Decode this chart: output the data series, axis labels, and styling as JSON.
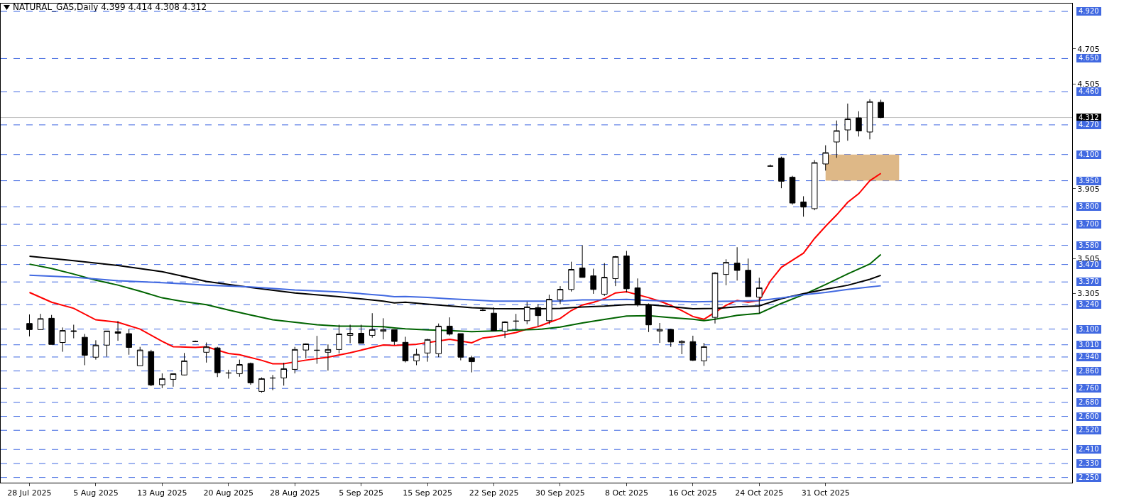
{
  "chart_data": {
    "type": "candlestick",
    "title": "NATURAL_GAS,Daily  4.399 4.414 4.308 4.312",
    "categories": [
      "28 Jul 2025",
      null,
      null,
      null,
      null,
      null,
      "5 Aug 2025",
      null,
      null,
      null,
      null,
      null,
      "13 Aug 2025",
      null,
      null,
      null,
      null,
      null,
      "20 Aug 2025",
      null,
      null,
      null,
      null,
      null,
      "28 Aug 2025",
      null,
      null,
      null,
      null,
      null,
      "5 Sep 2025",
      null,
      null,
      null,
      null,
      null,
      "15 Sep 2025",
      null,
      null,
      null,
      null,
      null,
      "22 Sep 2025",
      null,
      null,
      null,
      null,
      null,
      "30 Sep 2025",
      null,
      null,
      null,
      null,
      null,
      "8 Oct 2025",
      null,
      null,
      null,
      null,
      null,
      "16 Oct 2025",
      null,
      null,
      null,
      null,
      null,
      "24 Oct 2025",
      null,
      null,
      null,
      null,
      null,
      "31 Oct 2025",
      null,
      null,
      null,
      null,
      null
    ],
    "ohlc": [
      [
        3.132,
        3.184,
        3.058,
        3.097
      ],
      [
        3.097,
        3.187,
        3.096,
        3.16
      ],
      [
        3.162,
        3.181,
        3.012,
        3.012
      ],
      [
        3.023,
        3.109,
        2.97,
        3.092
      ],
      [
        3.09,
        3.125,
        3.047,
        3.087
      ],
      [
        3.053,
        3.072,
        2.893,
        2.95
      ],
      [
        2.939,
        3.036,
        2.925,
        3.008
      ],
      [
        3.008,
        3.089,
        2.942,
        3.089
      ],
      [
        3.085,
        3.146,
        3.033,
        3.076
      ],
      [
        3.074,
        3.099,
        2.953,
        2.995
      ],
      [
        2.89,
        2.998,
        2.89,
        2.98
      ],
      [
        2.971,
        2.981,
        2.773,
        2.78
      ],
      [
        2.781,
        2.846,
        2.762,
        2.816
      ],
      [
        2.812,
        2.844,
        2.77,
        2.844
      ],
      [
        2.837,
        2.963,
        2.834,
        2.918
      ],
      [
        3.028,
        3.034,
        3.026,
        3.029
      ],
      [
        2.967,
        3.023,
        2.908,
        2.998
      ],
      [
        2.992,
        2.998,
        2.825,
        2.85
      ],
      [
        2.849,
        2.867,
        2.816,
        2.848
      ],
      [
        2.844,
        2.925,
        2.827,
        2.897
      ],
      [
        2.903,
        2.908,
        2.781,
        2.792
      ],
      [
        2.743,
        2.823,
        2.736,
        2.816
      ],
      [
        2.819,
        2.837,
        2.75,
        2.82
      ],
      [
        2.82,
        2.907,
        2.776,
        2.873
      ],
      [
        2.869,
        2.998,
        2.846,
        2.983
      ],
      [
        2.98,
        3.018,
        2.932,
        3.015
      ],
      [
        2.978,
        3.061,
        2.901,
        2.979
      ],
      [
        2.967,
        3.012,
        2.862,
        2.983
      ],
      [
        2.983,
        3.125,
        2.96,
        3.072
      ],
      [
        3.064,
        3.125,
        3.019,
        3.076
      ],
      [
        3.076,
        3.125,
        3.019,
        3.019
      ],
      [
        3.064,
        3.191,
        3.051,
        3.097
      ],
      [
        3.087,
        3.162,
        3.041,
        3.097
      ],
      [
        3.097,
        3.097,
        3.009,
        3.029
      ],
      [
        3.024,
        3.056,
        2.909,
        2.918
      ],
      [
        2.918,
        2.987,
        2.893,
        2.955
      ],
      [
        2.963,
        3.044,
        2.913,
        3.04
      ],
      [
        2.959,
        3.132,
        2.939,
        3.117
      ],
      [
        3.117,
        3.167,
        3.063,
        3.071
      ],
      [
        3.074,
        3.074,
        2.921,
        2.939
      ],
      [
        2.936,
        2.947,
        2.852,
        2.913
      ],
      [
        3.208,
        3.218,
        3.203,
        3.207
      ],
      [
        3.191,
        3.224,
        3.09,
        3.09
      ],
      [
        3.087,
        3.145,
        3.049,
        3.141
      ],
      [
        3.145,
        3.187,
        3.098,
        3.146
      ],
      [
        3.148,
        3.256,
        3.128,
        3.227
      ],
      [
        3.223,
        3.243,
        3.116,
        3.177
      ],
      [
        3.148,
        3.297,
        3.127,
        3.271
      ],
      [
        3.267,
        3.346,
        3.243,
        3.328
      ],
      [
        3.327,
        3.486,
        3.315,
        3.442
      ],
      [
        3.45,
        3.581,
        3.396,
        3.396
      ],
      [
        3.405,
        3.446,
        3.302,
        3.327
      ],
      [
        3.3,
        3.478,
        3.29,
        3.397
      ],
      [
        3.389,
        3.519,
        3.346,
        3.515
      ],
      [
        3.519,
        3.548,
        3.31,
        3.331
      ],
      [
        3.336,
        3.39,
        3.229,
        3.239
      ],
      [
        3.239,
        3.247,
        3.083,
        3.124
      ],
      [
        3.089,
        3.135,
        3.021,
        3.098
      ],
      [
        3.098,
        3.101,
        2.998,
        3.026
      ],
      [
        3.022,
        3.036,
        2.956,
        3.03
      ],
      [
        3.028,
        3.062,
        2.917,
        2.921
      ],
      [
        2.918,
        3.021,
        2.889,
        2.999
      ],
      [
        3.167,
        3.427,
        3.132,
        3.421
      ],
      [
        3.413,
        3.5,
        3.351,
        3.482
      ],
      [
        3.478,
        3.569,
        3.378,
        3.436
      ],
      [
        3.437,
        3.504,
        3.286,
        3.286
      ],
      [
        3.283,
        3.394,
        3.189,
        3.336
      ],
      [
        4.033,
        4.043,
        4.031,
        4.034
      ],
      [
        4.079,
        4.088,
        3.907,
        3.947
      ],
      [
        3.97,
        3.978,
        3.813,
        3.822
      ],
      [
        3.828,
        3.861,
        3.744,
        3.799
      ],
      [
        3.79,
        4.068,
        3.781,
        4.054
      ],
      [
        4.046,
        4.153,
        4.008,
        4.111
      ],
      [
        4.172,
        4.295,
        4.081,
        4.237
      ],
      [
        4.241,
        4.392,
        4.179,
        4.304
      ],
      [
        4.31,
        4.348,
        4.203,
        4.235
      ],
      [
        4.229,
        4.417,
        4.187,
        4.403
      ],
      [
        4.399,
        4.414,
        4.308,
        4.312
      ]
    ],
    "series": [
      {
        "type": "line",
        "color": "#ff0000",
        "values": [
          3.31,
          null,
          3.254,
          null,
          3.219,
          null,
          3.153,
          null,
          3.139,
          null,
          3.1,
          null,
          3.03,
          2.999,
          null,
          2.995,
          2.999,
          null,
          2.96,
          2.953,
          null,
          2.921,
          2.901,
          2.901,
          null,
          2.922,
          null,
          2.939,
          null,
          2.964,
          null,
          2.995,
          3.009,
          3.006,
          null,
          3.013,
          null,
          null,
          3.041,
          null,
          3.021,
          3.049,
          3.057,
          3.068,
          3.08,
          3.1,
          3.114,
          3.138,
          3.161,
          3.206,
          3.238,
          3.253,
          3.274,
          3.307,
          3.314,
          null,
          3.28,
          3.26,
          3.236,
          3.206,
          3.172,
          3.156,
          null,
          3.236,
          3.264,
          3.254,
          3.264,
          3.375,
          3.454,
          3.494,
          3.535,
          3.619,
          3.689,
          3.754,
          3.826,
          3.876,
          3.95,
          3.992
        ]
      },
      {
        "type": "line",
        "color": "#006400",
        "values": [
          3.472,
          null,
          3.447,
          null,
          3.415,
          null,
          3.38,
          null,
          3.352,
          null,
          3.317,
          null,
          3.279,
          null,
          3.257,
          null,
          3.24,
          null,
          3.209,
          null,
          3.181,
          null,
          3.153,
          null,
          3.139,
          null,
          3.125,
          null,
          3.117,
          null,
          3.117,
          null,
          3.114,
          3.107,
          3.101,
          null,
          3.095,
          null,
          3.091,
          null,
          3.085,
          null,
          3.089,
          null,
          3.094,
          null,
          3.098,
          null,
          3.112,
          null,
          3.135,
          null,
          3.155,
          null,
          3.175,
          null,
          3.177,
          null,
          3.166,
          null,
          3.156,
          3.148,
          3.156,
          null,
          3.179,
          null,
          3.19,
          null,
          3.247,
          null,
          3.297,
          null,
          3.355,
          null,
          3.416,
          null,
          3.473,
          3.527
        ]
      },
      {
        "type": "line",
        "color": "#000000",
        "values": [
          3.517,
          null,
          null,
          null,
          3.492,
          null,
          null,
          null,
          3.464,
          null,
          null,
          null,
          3.429,
          null,
          null,
          null,
          3.373,
          null,
          null,
          null,
          3.338,
          null,
          null,
          null,
          3.307,
          null,
          null,
          null,
          3.285,
          null,
          null,
          null,
          3.26,
          3.25,
          3.254,
          null,
          3.243,
          null,
          3.233,
          null,
          3.222,
          null,
          3.217,
          null,
          3.216,
          null,
          3.216,
          null,
          3.218,
          null,
          3.227,
          null,
          3.232,
          null,
          3.24,
          null,
          3.24,
          null,
          3.229,
          null,
          3.216,
          null,
          3.218,
          null,
          3.228,
          null,
          3.233,
          null,
          3.274,
          null,
          3.303,
          null,
          3.328,
          null,
          3.351,
          null,
          3.385,
          3.408
        ]
      },
      {
        "type": "line",
        "color": "#4169e1",
        "values": [
          3.408,
          null,
          null,
          null,
          3.397,
          null,
          null,
          null,
          3.377,
          null,
          null,
          null,
          3.366,
          null,
          null,
          null,
          3.352,
          null,
          null,
          null,
          3.341,
          null,
          null,
          null,
          3.324,
          null,
          null,
          null,
          3.313,
          null,
          null,
          null,
          3.293,
          3.285,
          3.286,
          null,
          3.281,
          null,
          3.273,
          null,
          3.267,
          null,
          3.26,
          null,
          3.26,
          null,
          3.26,
          null,
          3.26,
          null,
          3.267,
          null,
          3.267,
          null,
          3.27,
          null,
          3.264,
          null,
          3.26,
          null,
          3.256,
          null,
          null,
          null,
          3.26,
          null,
          3.263,
          null,
          3.278,
          null,
          3.297,
          null,
          3.31,
          null,
          3.327,
          null,
          3.341,
          3.348
        ]
      }
    ],
    "ylim": [
      2.22,
      4.965
    ],
    "yticks": [
      3.305,
      3.505,
      3.905,
      4.505,
      4.705
    ],
    "ref_lines": [
      {
        "axis": "y",
        "value": 4.92,
        "label": "4.920",
        "color": "#4169e1",
        "line_style": "dashed"
      },
      {
        "axis": "y",
        "value": 4.65,
        "label": "4.650",
        "color": "#4169e1",
        "line_style": "dashed"
      },
      {
        "axis": "y",
        "value": 4.46,
        "label": "4.460",
        "color": "#4169e1",
        "line_style": "dashed"
      },
      {
        "axis": "y",
        "value": 4.312,
        "label": "4.312",
        "color": "#c0c0c0",
        "line_style": "solid"
      },
      {
        "axis": "y",
        "value": 4.27,
        "label": "4.270",
        "color": "#4169e1",
        "line_style": "dashed"
      },
      {
        "axis": "y",
        "value": 4.1,
        "label": "4.100",
        "color": "#4169e1",
        "line_style": "dashed"
      },
      {
        "axis": "y",
        "value": 3.95,
        "label": "3.950",
        "color": "#4169e1",
        "line_style": "dashed"
      },
      {
        "axis": "y",
        "value": 3.8,
        "label": "3.800",
        "color": "#4169e1",
        "line_style": "dashed"
      },
      {
        "axis": "y",
        "value": 3.7,
        "label": "3.700",
        "color": "#4169e1",
        "line_style": "dashed"
      },
      {
        "axis": "y",
        "value": 3.58,
        "label": "3.580",
        "color": "#4169e1",
        "line_style": "dashed"
      },
      {
        "axis": "y",
        "value": 3.47,
        "label": "3.470",
        "color": "#4169e1",
        "line_style": "dashed"
      },
      {
        "axis": "y",
        "value": 3.37,
        "label": "3.370",
        "color": "#4169e1",
        "line_style": "dashed"
      },
      {
        "axis": "y",
        "value": 3.24,
        "label": "3.240",
        "color": "#4169e1",
        "line_style": "dashed"
      },
      {
        "axis": "y",
        "value": 3.1,
        "label": "3.100",
        "color": "#4169e1",
        "line_style": "dashed"
      },
      {
        "axis": "y",
        "value": 3.01,
        "label": "3.010",
        "color": "#4169e1",
        "line_style": "dashed"
      },
      {
        "axis": "y",
        "value": 2.94,
        "label": "2.940",
        "color": "#4169e1",
        "line_style": "dashed"
      },
      {
        "axis": "y",
        "value": 2.86,
        "label": "2.860",
        "color": "#4169e1",
        "line_style": "dashed"
      },
      {
        "axis": "y",
        "value": 2.76,
        "label": "2.760",
        "color": "#4169e1",
        "line_style": "dashed"
      },
      {
        "axis": "y",
        "value": 2.68,
        "label": "2.680",
        "color": "#4169e1",
        "line_style": "dashed"
      },
      {
        "axis": "y",
        "value": 2.6,
        "label": "2.600",
        "color": "#4169e1",
        "line_style": "dashed"
      },
      {
        "axis": "y",
        "value": 2.52,
        "label": "2.520",
        "color": "#4169e1",
        "line_style": "dashed"
      },
      {
        "axis": "y",
        "value": 2.41,
        "label": "2.410",
        "color": "#4169e1",
        "line_style": "dashed"
      },
      {
        "axis": "y",
        "value": 2.33,
        "label": "2.330",
        "color": "#4169e1",
        "line_style": "dashed"
      },
      {
        "axis": "y",
        "value": 2.25,
        "label": "2.250",
        "color": "#4169e1",
        "line_style": "dashed"
      }
    ],
    "bands": [
      {
        "axis": "y",
        "from": 3.95,
        "to": 4.1,
        "color": "#deb887"
      }
    ],
    "grid": false
  }
}
